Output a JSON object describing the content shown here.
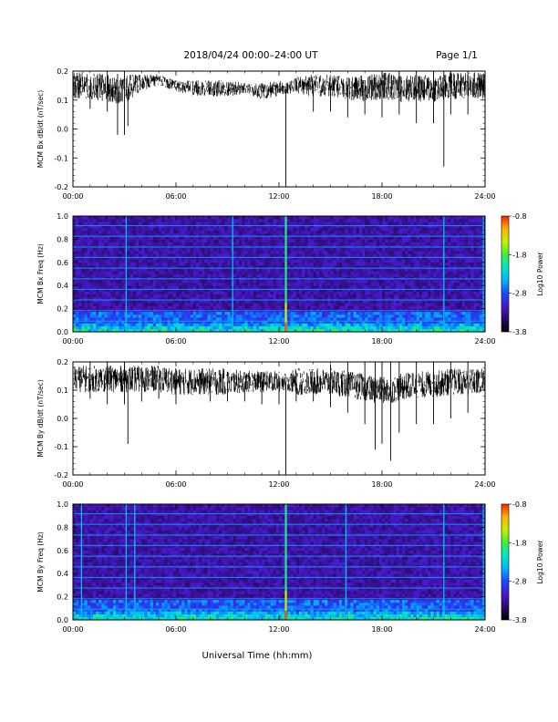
{
  "header": {
    "date_title": "2018/04/24  00:00–24:00 UT",
    "page": "Page 1/1"
  },
  "xlabel": "Universal Time (hh:mm)",
  "chart_data": [
    {
      "type": "line",
      "ylabel": "MCM Bx dB/dt (nT/sec)",
      "xlim": [
        0,
        24
      ],
      "ylim": [
        -0.2,
        0.2
      ],
      "xticks": [
        "00:00",
        "06:00",
        "12:00",
        "18:00",
        "24:00"
      ],
      "yticks": [
        "-0.2",
        "-0.1",
        "0.0",
        "0.1",
        "0.2"
      ],
      "series": [
        {
          "x": [
            0,
            1,
            2,
            2.6,
            3,
            3.2,
            4,
            5,
            6,
            7,
            8,
            9,
            10,
            11,
            12,
            12.4,
            13,
            14,
            15,
            16,
            17,
            18,
            19,
            20,
            21,
            21.6,
            22,
            23,
            24
          ],
          "y": [
            0.15,
            0.15,
            0.14,
            0.13,
            0.14,
            0.14,
            0.16,
            0.17,
            0.15,
            0.14,
            0.14,
            0.14,
            0.14,
            0.13,
            0.14,
            0.14,
            0.15,
            0.15,
            0.15,
            0.14,
            0.14,
            0.15,
            0.14,
            0.14,
            0.14,
            0.14,
            0.15,
            0.15,
            0.15
          ],
          "envelope_min": [
            0.09,
            0.07,
            0.06,
            -0.02,
            -0.02,
            0.01,
            0.13,
            0.12,
            0.1,
            0.09,
            0.1,
            0.1,
            0.09,
            0.09,
            0.09,
            -0.21,
            0.09,
            0.06,
            0.06,
            0.04,
            0.05,
            0.04,
            0.05,
            0.02,
            0.02,
            -0.13,
            0.05,
            0.05,
            0.06
          ],
          "envelope_max": [
            0.2,
            0.2,
            0.2,
            0.19,
            0.2,
            0.19,
            0.19,
            0.19,
            0.17,
            0.17,
            0.17,
            0.17,
            0.16,
            0.16,
            0.17,
            0.16,
            0.18,
            0.19,
            0.19,
            0.18,
            0.19,
            0.21,
            0.21,
            0.21,
            0.21,
            0.21,
            0.21,
            0.21,
            0.21
          ]
        }
      ]
    },
    {
      "type": "heatmap",
      "ylabel": "MCM Bx Freq (Hz)",
      "xlim": [
        0,
        24
      ],
      "ylim": [
        0,
        1.0
      ],
      "xticks": [
        "00:00",
        "06:00",
        "12:00",
        "18:00",
        "24:00"
      ],
      "yticks": [
        "0.0",
        "0.2",
        "0.4",
        "0.6",
        "0.8",
        "1.0"
      ],
      "colorbar": {
        "label": "Log10 Power",
        "range": [
          -3.8,
          -0.8
        ],
        "ticks": [
          "-0.8",
          "-1.8",
          "-2.8",
          "-3.8"
        ]
      },
      "harmonic_lines_hz": [
        0.092,
        0.183,
        0.275,
        0.367,
        0.458,
        0.55,
        0.642,
        0.733,
        0.825,
        0.917
      ],
      "bright_vertical_times_h": [
        3.1,
        9.3,
        12.4,
        21.6,
        23.9
      ],
      "brightest_vertical_time_h": 12.4
    },
    {
      "type": "line",
      "ylabel": "MCM By dB/dt (nT/sec)",
      "xlim": [
        0,
        24
      ],
      "ylim": [
        -0.2,
        0.2
      ],
      "xticks": [
        "00:00",
        "06:00",
        "12:00",
        "18:00",
        "24:00"
      ],
      "yticks": [
        "-0.2",
        "-0.1",
        "0.0",
        "0.1",
        "0.2"
      ],
      "series": [
        {
          "x": [
            0,
            1,
            2,
            3,
            3.2,
            4,
            5,
            6,
            7,
            8,
            9,
            10,
            11,
            12,
            12.4,
            13,
            14,
            15,
            16,
            17,
            17.6,
            18,
            18.5,
            19,
            20,
            21,
            22,
            23,
            24
          ],
          "y": [
            0.14,
            0.14,
            0.14,
            0.14,
            0.14,
            0.14,
            0.14,
            0.13,
            0.13,
            0.13,
            0.13,
            0.13,
            0.13,
            0.13,
            0.13,
            0.13,
            0.13,
            0.13,
            0.12,
            0.11,
            0.1,
            0.1,
            0.1,
            0.11,
            0.12,
            0.12,
            0.13,
            0.13,
            0.13
          ],
          "envelope_min": [
            0.08,
            0.07,
            0.05,
            0.05,
            -0.09,
            0.06,
            0.07,
            0.05,
            0.07,
            0.06,
            0.06,
            0.06,
            0.05,
            0.05,
            -0.21,
            0.06,
            0.06,
            0.04,
            0.02,
            -0.02,
            -0.11,
            -0.09,
            -0.15,
            -0.05,
            -0.02,
            -0.02,
            0.0,
            0.02,
            0.05
          ],
          "envelope_max": [
            0.2,
            0.2,
            0.2,
            0.2,
            0.19,
            0.19,
            0.19,
            0.18,
            0.18,
            0.18,
            0.18,
            0.17,
            0.17,
            0.17,
            0.16,
            0.18,
            0.18,
            0.19,
            0.2,
            0.2,
            0.2,
            0.21,
            0.21,
            0.2,
            0.2,
            0.21,
            0.2,
            0.2,
            0.2
          ]
        }
      ]
    },
    {
      "type": "heatmap",
      "ylabel": "MCM By Freq (Hz)",
      "xlim": [
        0,
        24
      ],
      "ylim": [
        0,
        1.0
      ],
      "xticks": [
        "00:00",
        "06:00",
        "12:00",
        "18:00",
        "24:00"
      ],
      "yticks": [
        "0.0",
        "0.2",
        "0.4",
        "0.6",
        "0.8",
        "1.0"
      ],
      "colorbar": {
        "label": "Log10 Power",
        "range": [
          -3.8,
          -0.8
        ],
        "ticks": [
          "-0.8",
          "-1.8",
          "-2.8",
          "-3.8"
        ]
      },
      "harmonic_lines_hz": [
        0.092,
        0.183,
        0.275,
        0.367,
        0.458,
        0.55,
        0.642,
        0.733,
        0.825,
        0.917
      ],
      "bright_vertical_times_h": [
        0.5,
        3.1,
        3.6,
        12.4,
        15.9,
        21.6,
        23.9
      ],
      "brightest_vertical_time_h": 12.4
    }
  ],
  "colors": {
    "colormap": [
      "#000000",
      "#2a0a6a",
      "#4b18c8",
      "#1b4aff",
      "#00b2ff",
      "#00e6c8",
      "#3cf03c",
      "#c8f000",
      "#ffb400",
      "#ff2000"
    ]
  }
}
